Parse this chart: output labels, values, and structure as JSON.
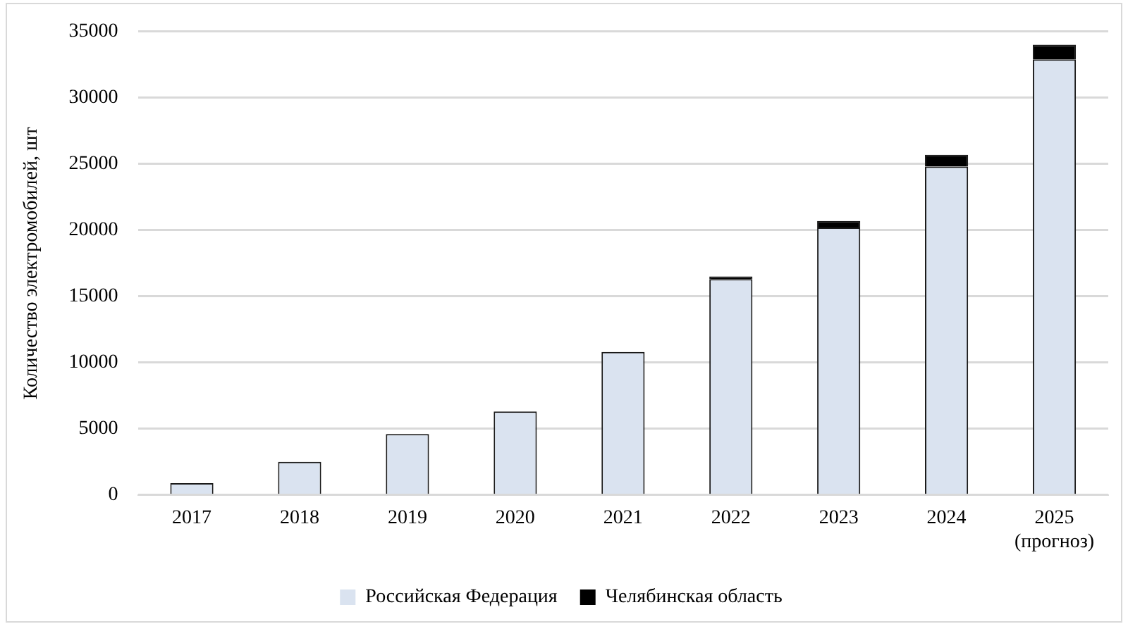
{
  "chart_data": {
    "type": "bar",
    "stacked": true,
    "ylabel": "Количество электромобилей, шт",
    "categories": [
      "2017",
      "2018",
      "2019",
      "2020",
      "2021",
      "2022",
      "2023",
      "2024",
      "2025 (прогноз)"
    ],
    "series": [
      {
        "name": "Российская Федерация",
        "color": "#dae3f0",
        "values": [
          900,
          2500,
          4600,
          6300,
          10800,
          16300,
          20200,
          24800,
          32900
        ]
      },
      {
        "name": "Челябинская область",
        "color": "#000000",
        "values": [
          null,
          null,
          null,
          null,
          null,
          200,
          500,
          900,
          1100
        ]
      }
    ],
    "ylim": [
      0,
      35000
    ],
    "yticks": [
      0,
      5000,
      10000,
      15000,
      20000,
      25000,
      30000,
      35000
    ],
    "grid": "y",
    "legend": "bottom"
  }
}
